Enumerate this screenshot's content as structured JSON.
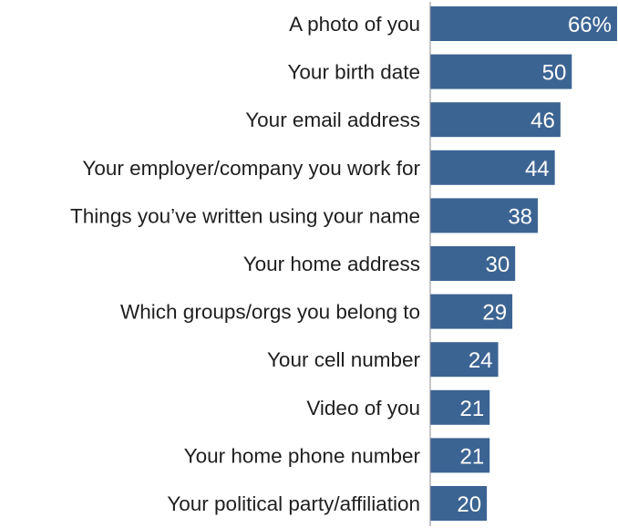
{
  "chart_data": {
    "type": "bar",
    "orientation": "horizontal",
    "categories": [
      "A photo of you",
      "Your birth date",
      "Your email address",
      "Your employer/company you work for",
      "Things you’ve written using your name",
      "Your home address",
      "Which groups/orgs you belong to",
      "Your cell number",
      "Video of you",
      "Your home phone number",
      "Your political party/affiliation"
    ],
    "values": [
      66,
      50,
      46,
      44,
      38,
      30,
      29,
      24,
      21,
      21,
      20
    ],
    "value_labels": [
      "66%",
      "50",
      "46",
      "44",
      "38",
      "30",
      "29",
      "24",
      "21",
      "21",
      "20"
    ],
    "title": "",
    "xlabel": "",
    "ylabel": "",
    "xlim": [
      0,
      66
    ],
    "grid": false,
    "legend": "none",
    "colors": {
      "bar": "#3c6493",
      "value_label": "#ffffff",
      "category_label": "#1f1f1f",
      "axis_line": "#8c8c8c"
    }
  }
}
